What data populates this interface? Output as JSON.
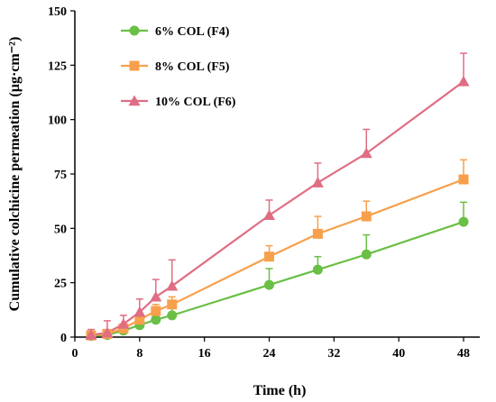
{
  "chart_data": {
    "type": "line",
    "xlabel": "Time (h)",
    "ylabel": "Cumulative colchicine permeation (µg·cm⁻²)",
    "xlim": [
      0,
      50
    ],
    "ylim": [
      0,
      150
    ],
    "xticks": [
      "0",
      "8",
      "16",
      "24",
      "32",
      "40",
      "48"
    ],
    "yticks": [
      "0",
      "25",
      "50",
      "75",
      "100",
      "125",
      "150"
    ],
    "x": [
      2,
      4,
      6,
      8,
      10,
      12,
      24,
      30,
      36,
      48
    ],
    "legend_position": "top-left",
    "grid": false,
    "series": [
      {
        "name": "6% COL (F4)",
        "color": "#6abf45",
        "marker": "circle",
        "values": [
          0.5,
          1.0,
          3.0,
          5.5,
          8.0,
          10.0,
          24.0,
          31.0,
          38.0,
          53.0
        ],
        "errors": [
          1.5,
          2.0,
          2.5,
          3.0,
          5.0,
          4.5,
          7.5,
          6.0,
          9.0,
          9.0
        ]
      },
      {
        "name": "8% COL (F5)",
        "color": "#f7a04c",
        "marker": "square",
        "values": [
          0.8,
          1.5,
          4.0,
          8.0,
          12.0,
          15.0,
          37.0,
          47.5,
          55.5,
          72.5
        ],
        "errors": [
          1.0,
          1.5,
          2.0,
          2.5,
          3.0,
          3.5,
          5.0,
          8.0,
          7.0,
          9.0
        ]
      },
      {
        "name": "10% COL (F6)",
        "color": "#e06d84",
        "marker": "triangle",
        "values": [
          1.0,
          2.0,
          6.0,
          11.5,
          18.5,
          23.5,
          56.0,
          71.0,
          84.5,
          117.5
        ],
        "errors": [
          2.5,
          5.5,
          4.0,
          6.0,
          8.0,
          12.0,
          7.0,
          9.0,
          11.0,
          13.0
        ]
      }
    ]
  }
}
